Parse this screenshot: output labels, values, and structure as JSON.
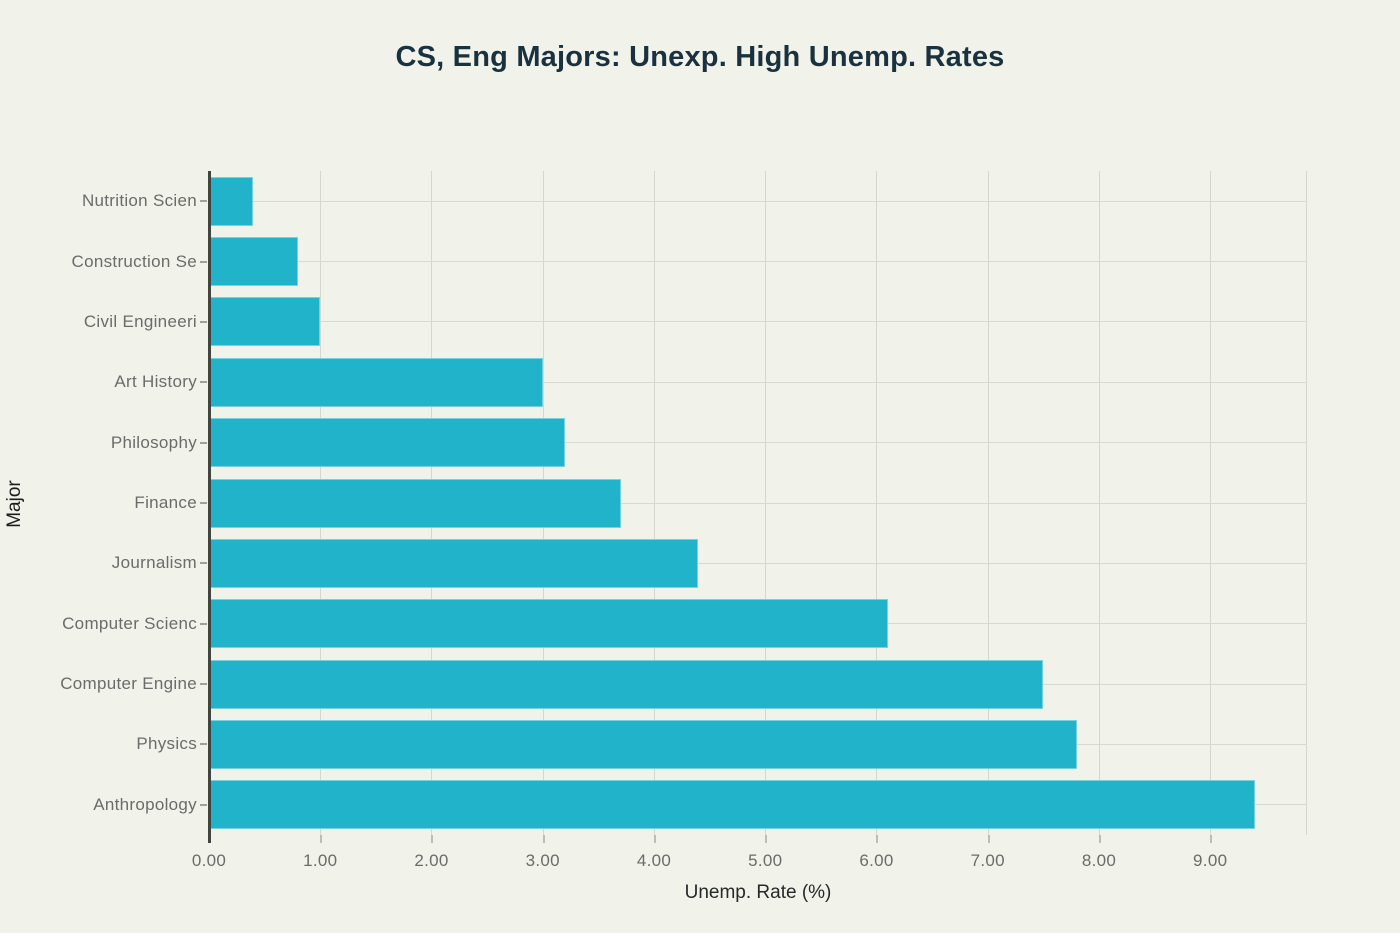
{
  "page": {
    "background_color": "#f1f2ea"
  },
  "chart_data": {
    "type": "bar",
    "orientation": "horizontal",
    "title": "CS, Eng Majors: Unexp. High Unemp. Rates",
    "xlabel": "Unemp. Rate (%)",
    "ylabel": "Major",
    "categories_top_to_bottom": [
      "Nutrition Scien",
      "Construction Se",
      "Civil Engineeri",
      "Art History",
      "Philosophy",
      "Finance",
      "Journalism",
      "Computer Scienc",
      "Computer Engine",
      "Physics",
      "Anthropology"
    ],
    "values": [
      0.4,
      0.8,
      1.0,
      3.0,
      3.2,
      3.7,
      4.4,
      6.1,
      7.5,
      7.8,
      9.4
    ],
    "x_tick_labels": [
      "0.00",
      "1.00",
      "2.00",
      "3.00",
      "4.00",
      "5.00",
      "6.00",
      "7.00",
      "8.00",
      "9.00"
    ],
    "x_tick_values": [
      0,
      1,
      2,
      3,
      4,
      5,
      6,
      7,
      8,
      9
    ],
    "xlim": [
      0,
      9.87
    ],
    "grid": true,
    "legend": false,
    "colors": {
      "bar_fill": "#20b3c9",
      "gridline": "#d5d7ce",
      "axis_line": "#42453f",
      "tick_label": "#696c6a",
      "axis_title": "#26292a",
      "title": "#1a323f"
    }
  }
}
